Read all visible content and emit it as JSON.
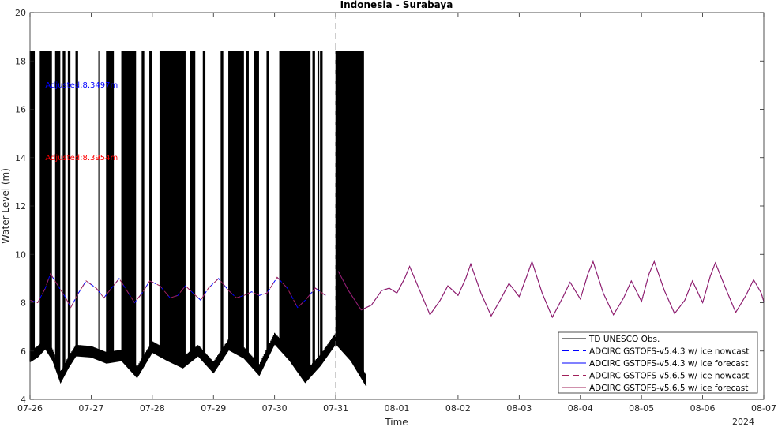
{
  "chart_data": {
    "type": "line",
    "title": "Indonesia - Surabaya",
    "xlabel": "Time",
    "ylabel": "Water Level (m)",
    "year_label": "2024",
    "x_range": [
      "2024-07-26",
      "2024-08-07"
    ],
    "ylim": [
      4,
      20
    ],
    "y_ticks": [
      4,
      6,
      8,
      10,
      12,
      14,
      16,
      18,
      20
    ],
    "x_ticks": [
      "07-26",
      "07-27",
      "07-28",
      "07-29",
      "07-30",
      "07-31",
      "08-01",
      "08-02",
      "08-03",
      "08-04",
      "08-05",
      "08-06",
      "08-07"
    ],
    "grid": false,
    "legend_position": "bottom-right",
    "nowcast_forecast_boundary": "2024-07-31T00:00",
    "annotations": [
      {
        "text": "Adjusted:8.3497m",
        "color": "#0000ff",
        "x": "2024-07-26T06:00",
        "y": 17.0
      },
      {
        "text": "Adjusted:8.3954m",
        "color": "#ff0000",
        "x": "2024-07-26T06:00",
        "y": 14.0
      }
    ],
    "series": [
      {
        "name": "TD UNESCO Obs.",
        "color": "#000000",
        "style": "solid",
        "note_value_high": 18.4,
        "envelope_low": [
          [
            "2024-07-26T00:00",
            5.55
          ],
          [
            "2024-07-26T03:00",
            5.75
          ],
          [
            "2024-07-26T06:00",
            6.1
          ],
          [
            "2024-07-26T09:00",
            5.6
          ],
          [
            "2024-07-26T12:00",
            4.7
          ],
          [
            "2024-07-26T15:00",
            5.3
          ],
          [
            "2024-07-26T18:00",
            5.8
          ],
          [
            "2024-07-27T00:00",
            5.75
          ],
          [
            "2024-07-27T06:00",
            5.5
          ],
          [
            "2024-07-27T12:00",
            5.6
          ],
          [
            "2024-07-27T18:00",
            4.9
          ],
          [
            "2024-07-28T00:00",
            5.95
          ],
          [
            "2024-07-28T06:00",
            5.6
          ],
          [
            "2024-07-28T12:00",
            5.3
          ],
          [
            "2024-07-28T18:00",
            5.8
          ],
          [
            "2024-07-29T00:00",
            5.1
          ],
          [
            "2024-07-29T06:00",
            6.05
          ],
          [
            "2024-07-29T12:00",
            5.7
          ],
          [
            "2024-07-29T18:00",
            5.0
          ],
          [
            "2024-07-30T00:00",
            6.3
          ],
          [
            "2024-07-30T06:00",
            5.6
          ],
          [
            "2024-07-30T12:00",
            4.7
          ],
          [
            "2024-07-30T18:00",
            5.4
          ],
          [
            "2024-07-31T00:00",
            6.3
          ],
          [
            "2024-07-31T06:00",
            5.6
          ],
          [
            "2024-07-31T12:00",
            4.55
          ]
        ],
        "tall_spike_bands": [
          [
            "2024-07-26T00:00",
            "2024-07-26T02:00"
          ],
          [
            "2024-07-26T04:00",
            "2024-07-26T08:30"
          ],
          [
            "2024-07-26T10:00",
            "2024-07-26T12:00"
          ],
          [
            "2024-07-26T13:00",
            "2024-07-26T14:00"
          ],
          [
            "2024-07-26T15:00",
            "2024-07-26T16:00"
          ],
          [
            "2024-07-26T18:00",
            "2024-07-26T19:00"
          ],
          [
            "2024-07-27T03:00",
            "2024-07-27T03:20"
          ],
          [
            "2024-07-27T06:00",
            "2024-07-27T09:00"
          ],
          [
            "2024-07-27T12:00",
            "2024-07-27T17:30"
          ],
          [
            "2024-07-27T20:00",
            "2024-07-27T21:00"
          ],
          [
            "2024-07-27T23:00",
            "2024-07-28T00:00"
          ],
          [
            "2024-07-28T03:00",
            "2024-07-28T13:00"
          ],
          [
            "2024-07-28T15:00",
            "2024-07-28T17:00"
          ],
          [
            "2024-07-28T20:00",
            "2024-07-28T21:00"
          ],
          [
            "2024-07-29T03:00",
            "2024-07-29T04:00"
          ],
          [
            "2024-07-29T06:00",
            "2024-07-29T12:00"
          ],
          [
            "2024-07-29T13:00",
            "2024-07-29T14:00"
          ],
          [
            "2024-07-29T16:00",
            "2024-07-29T18:00"
          ],
          [
            "2024-07-29T21:00",
            "2024-07-29T22:00"
          ],
          [
            "2024-07-30T02:00",
            "2024-07-30T14:00"
          ],
          [
            "2024-07-30T15:00",
            "2024-07-30T16:00"
          ],
          [
            "2024-07-30T17:00",
            "2024-07-30T17:30"
          ],
          [
            "2024-07-30T18:00",
            "2024-07-30T19:00"
          ],
          [
            "2024-07-31T00:00",
            "2024-07-31T11:00"
          ]
        ]
      },
      {
        "name": "ADCIRC GSTOFS-v5.4.3 w/ ice nowcast",
        "color": "#0000ff",
        "style": "dashed",
        "x_range": [
          "2024-07-26T00:00",
          "2024-07-31T00:00"
        ]
      },
      {
        "name": "ADCIRC GSTOFS-v5.4.3 w/ ice forecast",
        "color": "#0000ff",
        "style": "solid",
        "x_range": [
          "2024-07-31T00:00",
          "2024-08-07T00:00"
        ]
      },
      {
        "name": "ADCIRC GSTOFS-v5.6.5 w/ ice nowcast",
        "color": "#a0205a",
        "style": "dashed",
        "x_range": [
          "2024-07-26T00:00",
          "2024-07-31T00:00"
        ]
      },
      {
        "name": "ADCIRC GSTOFS-v5.6.5 w/ ice forecast",
        "color": "#a0205a",
        "style": "solid",
        "x_range": [
          "2024-07-31T00:00",
          "2024-08-07T00:00"
        ]
      }
    ],
    "model_points": [
      [
        "2024-07-26T00:00",
        8.1
      ],
      [
        "2024-07-26T03:00",
        8.0
      ],
      [
        "2024-07-26T06:00",
        8.6
      ],
      [
        "2024-07-26T08:00",
        9.2
      ],
      [
        "2024-07-26T11:00",
        8.7
      ],
      [
        "2024-07-26T14:00",
        8.2
      ],
      [
        "2024-07-26T16:00",
        7.8
      ],
      [
        "2024-07-26T19:00",
        8.4
      ],
      [
        "2024-07-26T22:00",
        8.9
      ],
      [
        "2024-07-27T02:00",
        8.6
      ],
      [
        "2024-07-27T05:00",
        8.2
      ],
      [
        "2024-07-27T08:00",
        8.6
      ],
      [
        "2024-07-27T11:00",
        9.0
      ],
      [
        "2024-07-27T14:00",
        8.5
      ],
      [
        "2024-07-27T17:00",
        8.0
      ],
      [
        "2024-07-27T20:00",
        8.4
      ],
      [
        "2024-07-27T23:00",
        8.9
      ],
      [
        "2024-07-28T03:00",
        8.7
      ],
      [
        "2024-07-28T07:00",
        8.2
      ],
      [
        "2024-07-28T10:00",
        8.3
      ],
      [
        "2024-07-28T13:00",
        8.7
      ],
      [
        "2024-07-28T16:00",
        8.4
      ],
      [
        "2024-07-28T19:00",
        8.1
      ],
      [
        "2024-07-28T22:00",
        8.6
      ],
      [
        "2024-07-29T02:00",
        9.0
      ],
      [
        "2024-07-29T06:00",
        8.5
      ],
      [
        "2024-07-29T09:00",
        8.2
      ],
      [
        "2024-07-29T12:00",
        8.3
      ],
      [
        "2024-07-29T15:00",
        8.45
      ],
      [
        "2024-07-29T18:00",
        8.3
      ],
      [
        "2024-07-29T21:00",
        8.4
      ],
      [
        "2024-07-30T01:00",
        9.05
      ],
      [
        "2024-07-30T05:00",
        8.6
      ],
      [
        "2024-07-30T09:00",
        7.8
      ],
      [
        "2024-07-30T12:00",
        8.1
      ],
      [
        "2024-07-30T16:00",
        8.6
      ],
      [
        "2024-07-30T20:00",
        8.3
      ],
      [
        "2024-07-31T01:00",
        9.3
      ],
      [
        "2024-07-31T05:00",
        8.5
      ],
      [
        "2024-07-31T10:00",
        7.7
      ],
      [
        "2024-07-31T14:00",
        7.9
      ],
      [
        "2024-07-31T18:00",
        8.5
      ],
      [
        "2024-07-31T21:00",
        8.6
      ],
      [
        "2024-08-01T00:00",
        8.4
      ],
      [
        "2024-08-01T03:00",
        9.0
      ],
      [
        "2024-08-01T05:00",
        9.5
      ],
      [
        "2024-08-01T09:00",
        8.5
      ],
      [
        "2024-08-01T13:00",
        7.5
      ],
      [
        "2024-08-01T17:00",
        8.1
      ],
      [
        "2024-08-01T20:00",
        8.7
      ],
      [
        "2024-08-02T00:00",
        8.3
      ],
      [
        "2024-08-02T03:00",
        9.0
      ],
      [
        "2024-08-02T05:00",
        9.6
      ],
      [
        "2024-08-02T09:00",
        8.4
      ],
      [
        "2024-08-02T13:00",
        7.45
      ],
      [
        "2024-08-02T17:00",
        8.2
      ],
      [
        "2024-08-02T20:00",
        8.8
      ],
      [
        "2024-08-03T00:00",
        8.25
      ],
      [
        "2024-08-03T03:00",
        9.1
      ],
      [
        "2024-08-03T05:00",
        9.7
      ],
      [
        "2024-08-03T09:00",
        8.4
      ],
      [
        "2024-08-03T13:00",
        7.4
      ],
      [
        "2024-08-03T17:00",
        8.2
      ],
      [
        "2024-08-03T20:00",
        8.85
      ],
      [
        "2024-08-04T00:00",
        8.15
      ],
      [
        "2024-08-04T03:00",
        9.2
      ],
      [
        "2024-08-04T05:00",
        9.7
      ],
      [
        "2024-08-04T09:00",
        8.4
      ],
      [
        "2024-08-04T13:00",
        7.5
      ],
      [
        "2024-08-04T17:00",
        8.2
      ],
      [
        "2024-08-04T20:00",
        8.9
      ],
      [
        "2024-08-05T00:00",
        8.05
      ],
      [
        "2024-08-05T03:00",
        9.2
      ],
      [
        "2024-08-05T05:00",
        9.7
      ],
      [
        "2024-08-05T09:00",
        8.5
      ],
      [
        "2024-08-05T13:00",
        7.55
      ],
      [
        "2024-08-05T17:00",
        8.1
      ],
      [
        "2024-08-05T20:00",
        8.9
      ],
      [
        "2024-08-06T00:00",
        8.0
      ],
      [
        "2024-08-06T03:00",
        9.1
      ],
      [
        "2024-08-06T05:00",
        9.65
      ],
      [
        "2024-08-06T09:00",
        8.6
      ],
      [
        "2024-08-06T13:00",
        7.6
      ],
      [
        "2024-08-06T17:00",
        8.3
      ],
      [
        "2024-08-06T20:00",
        8.95
      ],
      [
        "2024-08-06T23:00",
        8.4
      ],
      [
        "2024-08-07T00:00",
        8.05
      ]
    ]
  }
}
